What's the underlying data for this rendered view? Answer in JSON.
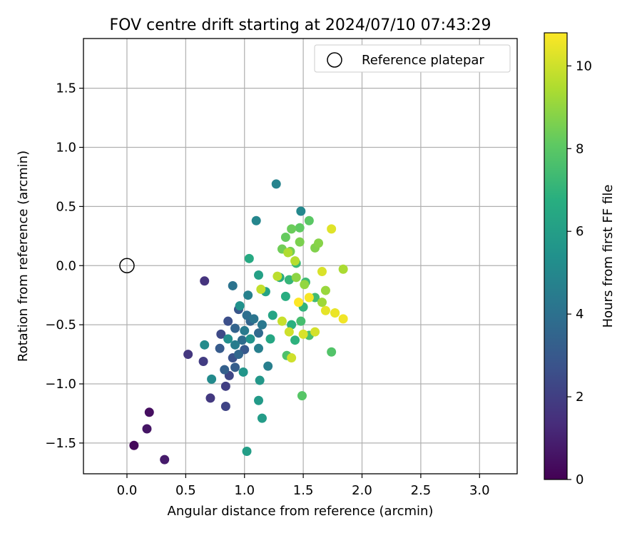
{
  "chart_data": {
    "type": "scatter",
    "title": "FOV centre drift starting at 2024/07/10 07:43:29",
    "xlabel": "Angular distance from reference (arcmin)",
    "ylabel": "Rotation from reference (arcmin)",
    "xlim": [
      -0.37,
      3.32
    ],
    "ylim": [
      -1.76,
      1.92
    ],
    "xticks": [
      0.0,
      0.5,
      1.0,
      1.5,
      2.0,
      2.5,
      3.0
    ],
    "xtick_labels": [
      "0.0",
      "0.5",
      "1.0",
      "1.5",
      "2.0",
      "2.5",
      "3.0"
    ],
    "yticks": [
      -1.5,
      -1.0,
      -0.5,
      0.0,
      0.5,
      1.0,
      1.5
    ],
    "ytick_labels": [
      "−1.5",
      "−1.0",
      "−0.5",
      "0.0",
      "0.5",
      "1.0",
      "1.5"
    ],
    "grid": true,
    "legend": {
      "placement": "top-right",
      "entries": [
        "Reference platepar"
      ]
    },
    "reference": {
      "x": 0.0,
      "y": 0.0
    },
    "colorbar": {
      "label": "Hours from first FF file",
      "colormap": "viridis",
      "range": [
        0,
        10.8
      ],
      "ticks": [
        0,
        2,
        4,
        6,
        8,
        10
      ],
      "tick_labels": [
        "0",
        "2",
        "4",
        "6",
        "8",
        "10"
      ]
    },
    "points": [
      [
        0.06,
        -1.52,
        0.2
      ],
      [
        0.19,
        -1.24,
        0.4
      ],
      [
        0.17,
        -1.38,
        0.6
      ],
      [
        0.32,
        -1.64,
        0.8
      ],
      [
        0.66,
        -0.13,
        1.6
      ],
      [
        0.52,
        -0.75,
        1.7
      ],
      [
        0.71,
        -1.12,
        1.8
      ],
      [
        0.65,
        -0.81,
        1.9
      ],
      [
        0.84,
        -1.02,
        2.0
      ],
      [
        0.84,
        -1.19,
        2.2
      ],
      [
        0.87,
        -0.93,
        2.3
      ],
      [
        0.8,
        -0.58,
        2.4
      ],
      [
        0.86,
        -0.47,
        2.6
      ],
      [
        0.9,
        -0.78,
        2.7
      ],
      [
        0.95,
        -0.37,
        2.9
      ],
      [
        1.0,
        -0.71,
        3.0
      ],
      [
        0.79,
        -0.7,
        3.1
      ],
      [
        0.92,
        -0.86,
        3.2
      ],
      [
        0.83,
        -0.88,
        3.3
      ],
      [
        0.92,
        -0.53,
        3.4
      ],
      [
        1.05,
        -0.47,
        3.5
      ],
      [
        0.95,
        -0.75,
        3.6
      ],
      [
        1.12,
        -0.57,
        3.7
      ],
      [
        0.98,
        -0.63,
        3.8
      ],
      [
        1.02,
        -0.42,
        3.9
      ],
      [
        0.9,
        -0.17,
        4.1
      ],
      [
        1.08,
        -0.45,
        4.2
      ],
      [
        1.15,
        -0.5,
        4.3
      ],
      [
        1.0,
        -0.55,
        4.4
      ],
      [
        0.92,
        -0.67,
        4.5
      ],
      [
        1.12,
        -0.7,
        4.6
      ],
      [
        1.2,
        -0.85,
        4.6
      ],
      [
        1.03,
        -0.25,
        4.7
      ],
      [
        1.27,
        0.69,
        4.8
      ],
      [
        1.1,
        0.38,
        4.9
      ],
      [
        1.48,
        0.46,
        5.0
      ],
      [
        0.72,
        -0.96,
        5.1
      ],
      [
        0.66,
        -0.67,
        5.2
      ],
      [
        0.86,
        -0.62,
        5.3
      ],
      [
        0.96,
        -0.34,
        5.4
      ],
      [
        1.05,
        -0.62,
        5.5
      ],
      [
        0.99,
        -0.9,
        5.6
      ],
      [
        1.13,
        -0.97,
        5.7
      ],
      [
        1.12,
        -1.14,
        5.8
      ],
      [
        1.15,
        -1.29,
        5.9
      ],
      [
        1.02,
        -1.57,
        6.0
      ],
      [
        1.12,
        -0.08,
        6.1
      ],
      [
        1.18,
        -0.22,
        6.2
      ],
      [
        1.24,
        -0.42,
        6.3
      ],
      [
        1.22,
        -0.62,
        6.4
      ],
      [
        1.04,
        0.06,
        6.5
      ],
      [
        1.3,
        -0.1,
        6.6
      ],
      [
        1.35,
        -0.26,
        6.7
      ],
      [
        1.4,
        -0.5,
        6.8
      ],
      [
        1.43,
        -0.63,
        6.9
      ],
      [
        1.5,
        -0.35,
        7.0
      ],
      [
        1.38,
        -0.12,
        7.1
      ],
      [
        1.44,
        0.02,
        7.2
      ],
      [
        1.52,
        -0.14,
        7.3
      ],
      [
        1.6,
        -0.27,
        7.4
      ],
      [
        1.48,
        -0.47,
        7.5
      ],
      [
        1.55,
        -0.59,
        7.6
      ],
      [
        1.36,
        -0.76,
        7.7
      ],
      [
        1.74,
        -0.73,
        7.8
      ],
      [
        1.49,
        -1.1,
        7.9
      ],
      [
        1.55,
        0.38,
        8.0
      ],
      [
        1.47,
        0.32,
        8.1
      ],
      [
        1.35,
        0.24,
        8.2
      ],
      [
        1.4,
        0.31,
        8.3
      ],
      [
        1.32,
        0.14,
        8.4
      ],
      [
        1.39,
        0.12,
        8.5
      ],
      [
        1.47,
        0.2,
        8.6
      ],
      [
        1.6,
        0.15,
        8.7
      ],
      [
        1.63,
        0.19,
        8.8
      ],
      [
        1.44,
        -0.1,
        8.9
      ],
      [
        1.51,
        -0.16,
        9.0
      ],
      [
        1.69,
        -0.21,
        9.1
      ],
      [
        1.66,
        -0.31,
        9.2
      ],
      [
        1.77,
        -0.4,
        9.3
      ],
      [
        1.84,
        -0.03,
        9.4
      ],
      [
        1.37,
        0.11,
        9.5
      ],
      [
        1.43,
        0.04,
        9.6
      ],
      [
        1.28,
        -0.09,
        9.7
      ],
      [
        1.14,
        -0.2,
        9.8
      ],
      [
        1.32,
        -0.47,
        9.9
      ],
      [
        1.38,
        -0.56,
        10.0
      ],
      [
        1.4,
        -0.78,
        10.0
      ],
      [
        1.6,
        -0.56,
        10.1
      ],
      [
        1.66,
        -0.05,
        10.2
      ],
      [
        1.5,
        -0.58,
        10.2
      ],
      [
        1.74,
        0.31,
        10.3
      ],
      [
        1.69,
        -0.38,
        10.4
      ],
      [
        1.77,
        -0.4,
        10.5
      ],
      [
        1.84,
        -0.45,
        10.6
      ],
      [
        1.55,
        -0.27,
        10.7
      ],
      [
        1.46,
        -0.31,
        10.8
      ]
    ]
  }
}
